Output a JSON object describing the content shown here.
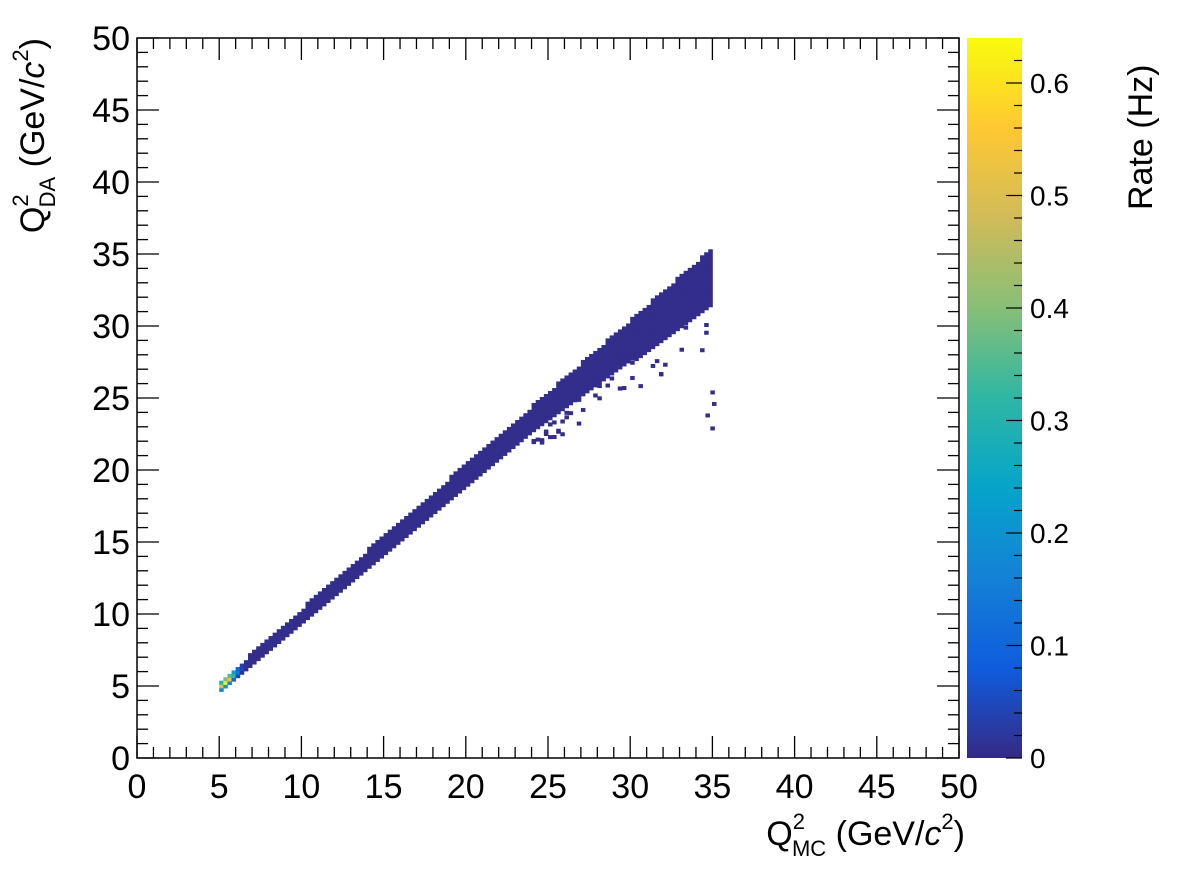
{
  "chart_data": {
    "type": "heatmap",
    "title": "",
    "xlabel": {
      "main": "Q",
      "sup": "2",
      "sub": "MC",
      "unit_pre": " (GeV/",
      "unit_c": "c",
      "unit_sup": "2",
      "unit_post": ")"
    },
    "ylabel": {
      "main": "Q",
      "sup": "2",
      "sub": "DA",
      "unit_pre": " (GeV/",
      "unit_c": "c",
      "unit_sup": "2",
      "unit_post": ")"
    },
    "xlim": [
      0,
      50
    ],
    "ylim": [
      0,
      50
    ],
    "x_ticks": [
      "0",
      "5",
      "10",
      "15",
      "20",
      "25",
      "30",
      "35",
      "40",
      "45",
      "50"
    ],
    "y_ticks": [
      "0",
      "5",
      "10",
      "15",
      "20",
      "25",
      "30",
      "35",
      "40",
      "45",
      "50"
    ],
    "colorbar": {
      "label": "Rate (Hz)",
      "range": [
        0,
        0.64
      ],
      "ticks": [
        "0",
        "0.1",
        "0.2",
        "0.3",
        "0.4",
        "0.5",
        "0.6"
      ],
      "palette": [
        "#352a87",
        "#0f5cdd",
        "#1481d6",
        "#06a4ca",
        "#2eb7a4",
        "#87bf77",
        "#d1bb59",
        "#fec832",
        "#f9fb0e"
      ]
    },
    "bins": {
      "count": 200,
      "width": 0.25
    },
    "content": {
      "q2_min": 5.0,
      "q2_max": 35.0,
      "peak_rate": 0.64,
      "peak_q2": 5.4,
      "diagonal_band": true,
      "low_side_tail_starts_q2": 24.0,
      "outliers": [
        [
          35.0,
          22.9
        ],
        [
          34.7,
          23.8
        ],
        [
          35.1,
          24.6
        ],
        [
          35.0,
          25.4
        ]
      ]
    },
    "grid": false,
    "legend": "none"
  }
}
